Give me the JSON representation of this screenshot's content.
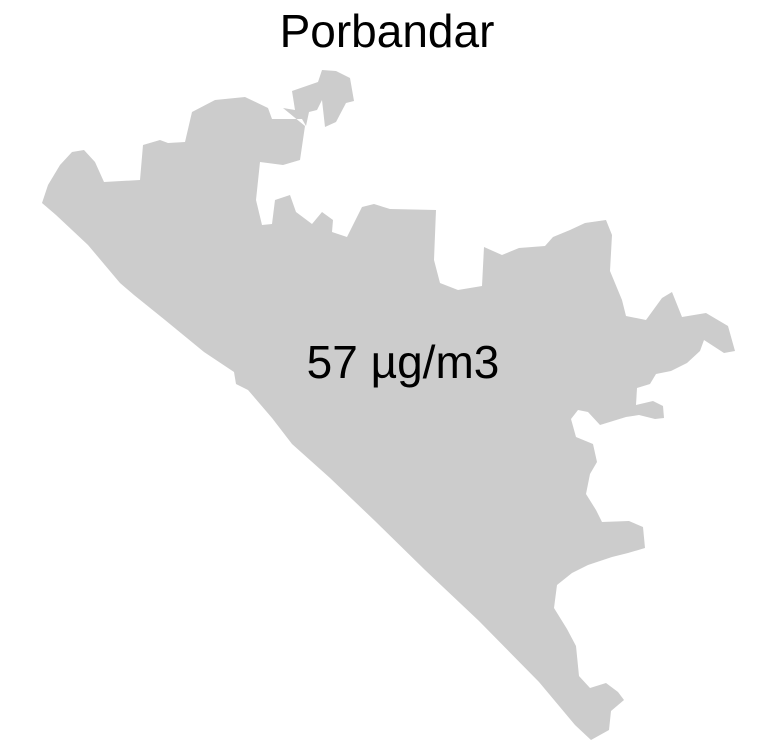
{
  "map": {
    "title": "Porbandar",
    "region_label": "57 µg/m3",
    "colors": {
      "region_fill": "#cccccc",
      "background": "#ffffff",
      "text": "#000000"
    }
  }
}
